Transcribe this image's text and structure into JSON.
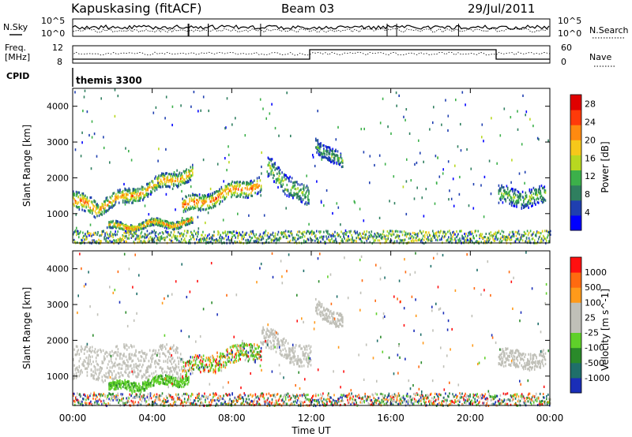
{
  "header": {
    "station": "Kapuskasing (fitACF)",
    "beam": "Beam 03",
    "date": "29/Jul/2011"
  },
  "noise_panel": {
    "left_label": "N.Sky",
    "right_label": "N.Search",
    "ticks": [
      "10^5",
      "10^0"
    ]
  },
  "freq_panel": {
    "left_label_1": "Freq.",
    "left_label_2": "[MHz]",
    "right_label": "Nave",
    "left_ticks": [
      "12",
      "8"
    ],
    "right_ticks": [
      "60",
      "0"
    ]
  },
  "cpid": {
    "label": "CPID",
    "value": "themis 3300"
  },
  "chart_data": [
    {
      "type": "heatmap",
      "title": "",
      "xlabel": "Time UT",
      "ylabel": "Slant Range [km]",
      "x_ticks": [
        "00:00",
        "04:00",
        "08:00",
        "12:00",
        "16:00",
        "20:00",
        "00:00"
      ],
      "y_ticks": [
        "1000",
        "2000",
        "3000",
        "4000"
      ],
      "xlim_hours": [
        0,
        24
      ],
      "ylim_km": [
        180,
        4500
      ],
      "colorbar": {
        "label": "Power [dB]",
        "ticks": [
          "4",
          "8",
          "12",
          "16",
          "20",
          "24",
          "28"
        ],
        "range": [
          0,
          30
        ],
        "colors": [
          "#0000ff",
          "#1f3fb0",
          "#2f7f5f",
          "#3cb04a",
          "#b8d820",
          "#f6c81a",
          "#ff8a10",
          "#ff3a0a",
          "#e00000"
        ]
      },
      "structures": [
        {
          "start_h": 0.0,
          "end_h": 1.2,
          "range_start_km": 1400,
          "range_end_km": 1150,
          "thickness_km": 500,
          "peak_power": 24
        },
        {
          "start_h": 1.2,
          "end_h": 6.0,
          "range_start_km": 1200,
          "range_end_km": 2200,
          "thickness_km": 400,
          "peak_power": 22
        },
        {
          "start_h": 1.8,
          "end_h": 6.0,
          "range_start_km": 650,
          "range_end_km": 800,
          "thickness_km": 200,
          "peak_power": 24
        },
        {
          "start_h": 5.5,
          "end_h": 9.5,
          "range_start_km": 1200,
          "range_end_km": 1900,
          "thickness_km": 450,
          "peak_power": 24
        },
        {
          "start_h": 9.8,
          "end_h": 11.9,
          "range_start_km": 2300,
          "range_end_km": 1400,
          "thickness_km": 600,
          "peak_power": 14
        },
        {
          "start_h": 12.2,
          "end_h": 13.6,
          "range_start_km": 3000,
          "range_end_km": 2400,
          "thickness_km": 400,
          "peak_power": 12
        },
        {
          "start_h": 21.4,
          "end_h": 23.8,
          "range_start_km": 1500,
          "range_end_km": 1500,
          "thickness_km": 500,
          "peak_power": 14
        }
      ]
    },
    {
      "type": "heatmap",
      "title": "",
      "xlabel": "Time UT",
      "ylabel": "Slant Range [km]",
      "x_ticks": [
        "00:00",
        "04:00",
        "08:00",
        "12:00",
        "16:00",
        "20:00",
        "00:00"
      ],
      "y_ticks": [
        "1000",
        "2000",
        "3000",
        "4000"
      ],
      "xlim_hours": [
        0,
        24
      ],
      "ylim_km": [
        180,
        4500
      ],
      "colorbar": {
        "label": "Velocity [m s^-1]",
        "ticks": [
          "1000",
          "500",
          "100",
          "25",
          "-25",
          "-100",
          "-500",
          "-1000"
        ],
        "colors": [
          "#1a2eb8",
          "#1f6f6a",
          "#2a8a2a",
          "#5fd02a",
          "#c0c0b8",
          "#c0c0b8",
          "#ff9a1a",
          "#ff6a10",
          "#ff1010"
        ]
      },
      "structures": [
        {
          "start_h": 0.0,
          "end_h": 5.5,
          "range_start_km": 1400,
          "range_end_km": 1400,
          "thickness_km": 900,
          "velocity_class": "ground"
        },
        {
          "start_h": 1.8,
          "end_h": 5.8,
          "range_start_km": 700,
          "range_end_km": 950,
          "thickness_km": 250,
          "velocity_class": "positive"
        },
        {
          "start_h": 5.5,
          "end_h": 9.5,
          "range_start_km": 1200,
          "range_end_km": 1800,
          "thickness_km": 500,
          "velocity_class": "mixed"
        },
        {
          "start_h": 9.5,
          "end_h": 12.0,
          "range_start_km": 2100,
          "range_end_km": 1500,
          "thickness_km": 600,
          "velocity_class": "ground"
        },
        {
          "start_h": 12.2,
          "end_h": 13.6,
          "range_start_km": 3000,
          "range_end_km": 2500,
          "thickness_km": 400,
          "velocity_class": "ground"
        },
        {
          "start_h": 21.4,
          "end_h": 23.8,
          "range_start_km": 1500,
          "range_end_km": 1500,
          "thickness_km": 500,
          "velocity_class": "ground"
        }
      ]
    }
  ]
}
